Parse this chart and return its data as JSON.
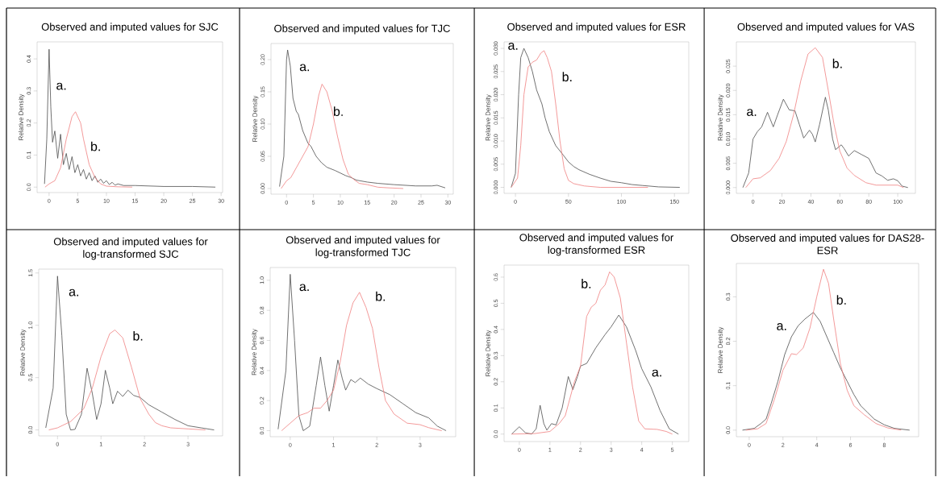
{
  "chart_data": [
    {
      "type": "line",
      "title": "Observed and imputed values for SJC",
      "ylabel": "Relative Density",
      "xlim": [
        -2.09,
        30.26
      ],
      "ylim": [
        -0.017,
        0.453
      ],
      "xticks": [
        0,
        5,
        10,
        15,
        20,
        25,
        30
      ],
      "yticks": [
        {
          "value": 0,
          "label": "0.0"
        },
        {
          "value": 0.1,
          "label": "0.1"
        },
        {
          "value": 0.2,
          "label": "0.2"
        },
        {
          "value": 0.3,
          "label": "0.3"
        },
        {
          "value": 0.4,
          "label": "0.4"
        }
      ],
      "series": [
        {
          "color": "#4d4d4d",
          "x": [
            -0.8,
            -0.4,
            0,
            0.3,
            0.6,
            1,
            1.5,
            2,
            2.5,
            3,
            3.5,
            4,
            4.5,
            5,
            5.5,
            6,
            6.5,
            7,
            7.5,
            8,
            8.5,
            9,
            9.5,
            10,
            10.5,
            11,
            11.5,
            12,
            13,
            15,
            20,
            25,
            29
          ],
          "values": [
            0.01,
            0.15,
            0.43,
            0.25,
            0.14,
            0.175,
            0.09,
            0.165,
            0.07,
            0.105,
            0.055,
            0.095,
            0.045,
            0.07,
            0.035,
            0.055,
            0.025,
            0.045,
            0.02,
            0.035,
            0.015,
            0.025,
            0.012,
            0.02,
            0.008,
            0.015,
            0.006,
            0.01,
            0.005,
            0.005,
            0.002,
            0.002,
            0.0
          ]
        },
        {
          "color": "#f08080",
          "x": [
            -0.7,
            0,
            1,
            2,
            3,
            4,
            4.6,
            5.5,
            6,
            7,
            8,
            9,
            10,
            12,
            14.5
          ],
          "values": [
            0.0,
            0.01,
            0.02,
            0.06,
            0.15,
            0.22,
            0.235,
            0.2,
            0.15,
            0.07,
            0.03,
            0.01,
            0.003,
            0.001,
            0.0
          ]
        }
      ],
      "annotations": [
        "a.",
        "b."
      ]
    },
    {
      "type": "line",
      "title": "Observed and imputed values for TJC",
      "ylabel": "Relative Density",
      "xlim": [
        -2.89,
        31.0
      ],
      "ylim": [
        -0.0088,
        0.225
      ],
      "xticks": [
        0,
        5,
        10,
        15,
        20,
        25,
        30
      ],
      "yticks": [
        {
          "value": 0,
          "label": "0.00"
        },
        {
          "value": 0.05,
          "label": "0.05"
        },
        {
          "value": 0.1,
          "label": "0.10"
        },
        {
          "value": 0.15,
          "label": "0.15"
        },
        {
          "value": 0.2,
          "label": "0.20"
        }
      ],
      "series": [
        {
          "color": "#4d4d4d",
          "x": [
            -1.3,
            -0.5,
            0,
            0.2,
            0.7,
            1.2,
            1.8,
            2.2,
            3,
            4,
            4.5,
            5.5,
            6.5,
            7.5,
            9,
            10,
            11,
            12,
            13,
            15,
            17,
            20,
            24,
            27,
            28,
            29.5
          ],
          "values": [
            0.003,
            0.05,
            0.2,
            0.215,
            0.19,
            0.14,
            0.12,
            0.115,
            0.09,
            0.07,
            0.066,
            0.05,
            0.04,
            0.033,
            0.028,
            0.024,
            0.02,
            0.017,
            0.013,
            0.01,
            0.008,
            0.006,
            0.004,
            0.004,
            0.005,
            0.001
          ]
        },
        {
          "color": "#f08080",
          "x": [
            -1,
            0,
            0.8,
            2,
            3,
            4,
            5,
            6,
            6.6,
            7.5,
            8.5,
            9.5,
            10.5,
            11.5,
            12.5,
            13.5,
            15,
            17,
            19,
            21.7
          ],
          "values": [
            0.0,
            0.012,
            0.017,
            0.035,
            0.05,
            0.065,
            0.1,
            0.145,
            0.162,
            0.15,
            0.12,
            0.08,
            0.045,
            0.022,
            0.014,
            0.008,
            0.006,
            0.002,
            0.001,
            0.0
          ]
        }
      ],
      "annotations": [
        "a.",
        "b."
      ]
    },
    {
      "type": "line",
      "title": "Observed and imputed values for ESR",
      "ylabel": "Relative Density",
      "xlim": [
        -10.7,
        163.5
      ],
      "ylim": [
        -0.0013,
        0.0314
      ],
      "xticks": [
        0,
        50,
        100,
        150
      ],
      "yticks": [
        {
          "value": 0,
          "label": "0.000"
        },
        {
          "value": 0.005,
          "label": "0.005"
        },
        {
          "value": 0.01,
          "label": "0.010"
        },
        {
          "value": 0.015,
          "label": "0.015"
        },
        {
          "value": 0.02,
          "label": "0.020"
        },
        {
          "value": 0.025,
          "label": "0.025"
        },
        {
          "value": 0.03,
          "label": "0.030"
        }
      ],
      "series": [
        {
          "color": "#4d4d4d",
          "x": [
            -4,
            0,
            3,
            5,
            8,
            12,
            16,
            20,
            25,
            28,
            32,
            38,
            45,
            50,
            55,
            60,
            70,
            80,
            90,
            100,
            110,
            120,
            135,
            155
          ],
          "values": [
            0.0,
            0.003,
            0.02,
            0.028,
            0.03,
            0.028,
            0.025,
            0.021,
            0.018,
            0.015,
            0.012,
            0.009,
            0.007,
            0.0055,
            0.0045,
            0.0038,
            0.0028,
            0.002,
            0.0013,
            0.001,
            0.0006,
            0.0004,
            0.0001,
            0.0
          ]
        },
        {
          "color": "#f08080",
          "x": [
            -4,
            2,
            5,
            8,
            12,
            16,
            20,
            24,
            27,
            30,
            34,
            38,
            42,
            46,
            50,
            55,
            65,
            80,
            125
          ],
          "values": [
            0.0,
            0.002,
            0.009,
            0.02,
            0.026,
            0.027,
            0.0275,
            0.029,
            0.0295,
            0.028,
            0.025,
            0.018,
            0.01,
            0.004,
            0.0015,
            0.0008,
            0.0003,
            0.0,
            0.0
          ]
        }
      ],
      "annotations": [
        "a.",
        "b."
      ]
    },
    {
      "type": "line",
      "title": "Observed and imputed values for VAS",
      "ylabel": "Relative Density",
      "xlim": [
        -11.5,
        112.2
      ],
      "ylim": [
        -0.0012,
        0.03
      ],
      "xticks": [
        0,
        20,
        40,
        60,
        80,
        100
      ],
      "yticks": [
        {
          "value": 0,
          "label": "0.000"
        },
        {
          "value": 0.005,
          "label": "0.005"
        },
        {
          "value": 0.01,
          "label": "0.010"
        },
        {
          "value": 0.015,
          "label": "0.015"
        },
        {
          "value": 0.02,
          "label": "0.020"
        },
        {
          "value": 0.025,
          "label": "0.025"
        }
      ],
      "series": [
        {
          "color": "#4d4d4d",
          "x": [
            -7,
            -3,
            0,
            3,
            6,
            10,
            14,
            17,
            21,
            25,
            29,
            32,
            35,
            39,
            41,
            43,
            46,
            50,
            52,
            55,
            57,
            61,
            63,
            66,
            70,
            75,
            80,
            85,
            89,
            93,
            97,
            100,
            103,
            107
          ],
          "values": [
            0.0,
            0.003,
            0.01,
            0.0115,
            0.0125,
            0.0155,
            0.0125,
            0.015,
            0.0182,
            0.016,
            0.0158,
            0.013,
            0.0102,
            0.0118,
            0.011,
            0.0094,
            0.013,
            0.0186,
            0.016,
            0.01,
            0.0078,
            0.0088,
            0.008,
            0.0065,
            0.0076,
            0.0068,
            0.006,
            0.003,
            0.0024,
            0.0015,
            0.0018,
            0.0014,
            0.0003,
            0.0
          ]
        },
        {
          "color": "#f08080",
          "x": [
            -5,
            0,
            5,
            12,
            18,
            23,
            28,
            33,
            38,
            43,
            48,
            52,
            56,
            60,
            65,
            70,
            78,
            85,
            95,
            100,
            104
          ],
          "values": [
            0.0,
            0.0018,
            0.002,
            0.0035,
            0.006,
            0.0095,
            0.015,
            0.022,
            0.0275,
            0.0288,
            0.0268,
            0.02,
            0.013,
            0.0075,
            0.004,
            0.0025,
            0.001,
            0.0005,
            0.0005,
            0.0005,
            0.0
          ]
        }
      ],
      "annotations": [
        "a.",
        "b."
      ]
    },
    {
      "type": "line",
      "title": "Observed and imputed values for log-transformed SJC",
      "ylabel": "Relative Density",
      "xlim": [
        -0.432,
        3.795
      ],
      "ylim": [
        -0.057,
        1.537
      ],
      "xticks": [
        0,
        1,
        2,
        3
      ],
      "yticks": [
        {
          "value": 0,
          "label": "0.0"
        },
        {
          "value": 0.5,
          "label": "0.5"
        },
        {
          "value": 1,
          "label": "1.0"
        },
        {
          "value": 1.5,
          "label": "1.5"
        }
      ],
      "series": [
        {
          "color": "#4d4d4d",
          "x": [
            -0.27,
            -0.1,
            0,
            0.1,
            0.2,
            0.3,
            0.4,
            0.55,
            0.68,
            0.8,
            0.9,
            1.0,
            1.1,
            1.2,
            1.27,
            1.38,
            1.5,
            1.62,
            1.75,
            1.9,
            2.1,
            2.4,
            2.7,
            3.0,
            3.3,
            3.6
          ],
          "values": [
            0.02,
            0.4,
            1.47,
            0.9,
            0.15,
            0.0,
            0.005,
            0.15,
            0.59,
            0.35,
            0.1,
            0.25,
            0.57,
            0.4,
            0.25,
            0.37,
            0.32,
            0.38,
            0.33,
            0.31,
            0.24,
            0.17,
            0.1,
            0.04,
            0.02,
            0.0
          ]
        },
        {
          "color": "#f08080",
          "x": [
            -0.2,
            0,
            0.3,
            0.6,
            0.8,
            1.0,
            1.2,
            1.32,
            1.5,
            1.7,
            1.9,
            2.1,
            2.25,
            2.4,
            2.6,
            3.0,
            3.4
          ],
          "values": [
            0.0,
            0.02,
            0.08,
            0.2,
            0.4,
            0.7,
            0.92,
            0.955,
            0.88,
            0.6,
            0.3,
            0.15,
            0.07,
            0.04,
            0.02,
            0.01,
            0.0
          ]
        }
      ],
      "annotations": [
        "a.",
        "b."
      ]
    },
    {
      "type": "line",
      "title": "Observed and imputed values for log-transformed TJC",
      "ylabel": "Relative Density",
      "xlim": [
        -0.463,
        3.822
      ],
      "ylim": [
        -0.04,
        1.085
      ],
      "xticks": [
        0,
        1,
        2,
        3
      ],
      "yticks": [
        {
          "value": 0,
          "label": "0.0"
        },
        {
          "value": 0.2,
          "label": "0.2"
        },
        {
          "value": 0.4,
          "label": "0.4"
        },
        {
          "value": 0.6,
          "label": "0.6"
        },
        {
          "value": 0.8,
          "label": "0.8"
        },
        {
          "value": 1,
          "label": "1.0"
        }
      ],
      "series": [
        {
          "color": "#4d4d4d",
          "x": [
            -0.28,
            -0.1,
            0,
            0.1,
            0.2,
            0.3,
            0.45,
            0.6,
            0.7,
            0.8,
            0.9,
            1.0,
            1.1,
            1.2,
            1.28,
            1.4,
            1.5,
            1.62,
            1.8,
            2.0,
            2.3,
            2.6,
            2.9,
            3.2,
            3.4,
            3.6
          ],
          "values": [
            0.01,
            0.4,
            1.04,
            0.6,
            0.1,
            0.0,
            0.03,
            0.3,
            0.49,
            0.3,
            0.13,
            0.3,
            0.47,
            0.35,
            0.27,
            0.34,
            0.32,
            0.35,
            0.31,
            0.28,
            0.24,
            0.18,
            0.12,
            0.085,
            0.03,
            0.0
          ]
        },
        {
          "color": "#f08080",
          "x": [
            -0.2,
            0,
            0.2,
            0.4,
            0.55,
            0.7,
            0.85,
            1.0,
            1.15,
            1.3,
            1.45,
            1.6,
            1.75,
            1.9,
            2.05,
            2.2,
            2.4,
            2.7,
            3.0,
            3.2,
            3.5
          ],
          "values": [
            0.0,
            0.05,
            0.1,
            0.12,
            0.15,
            0.15,
            0.2,
            0.27,
            0.45,
            0.7,
            0.85,
            0.92,
            0.82,
            0.68,
            0.42,
            0.2,
            0.11,
            0.05,
            0.04,
            0.02,
            0.0
          ]
        }
      ],
      "annotations": [
        "a.",
        "b."
      ]
    },
    {
      "type": "line",
      "title": "Observed and imputed values for log-transformed ESR",
      "ylabel": "Relative Density",
      "xlim": [
        -0.498,
        5.537
      ],
      "ylim": [
        -0.0285,
        0.646
      ],
      "xticks": [
        0,
        1,
        2,
        3,
        4,
        5
      ],
      "yticks": [
        {
          "value": 0,
          "label": "0.0"
        },
        {
          "value": 0.1,
          "label": "0.1"
        },
        {
          "value": 0.2,
          "label": "0.2"
        },
        {
          "value": 0.3,
          "label": "0.3"
        },
        {
          "value": 0.4,
          "label": "0.4"
        },
        {
          "value": 0.5,
          "label": "0.5"
        },
        {
          "value": 0.6,
          "label": "0.6"
        }
      ],
      "series": [
        {
          "color": "#4d4d4d",
          "x": [
            -0.25,
            0,
            0.2,
            0.4,
            0.55,
            0.68,
            0.8,
            0.9,
            1.05,
            1.2,
            1.4,
            1.6,
            1.75,
            1.9,
            2.0,
            2.2,
            2.5,
            2.8,
            3.0,
            3.25,
            3.5,
            3.8,
            4.0,
            4.3,
            4.6,
            4.9,
            5.2
          ],
          "values": [
            0.0,
            0.028,
            0.005,
            0.0,
            0.02,
            0.11,
            0.04,
            0.015,
            0.04,
            0.035,
            0.1,
            0.22,
            0.17,
            0.22,
            0.26,
            0.27,
            0.33,
            0.38,
            0.41,
            0.455,
            0.41,
            0.32,
            0.25,
            0.18,
            0.09,
            0.02,
            0.0
          ]
        },
        {
          "color": "#f08080",
          "x": [
            -0.25,
            0.5,
            1.0,
            1.3,
            1.5,
            1.8,
            2.0,
            2.2,
            2.35,
            2.5,
            2.65,
            2.8,
            2.95,
            3.1,
            3.3,
            3.5,
            3.7,
            3.9,
            4.1,
            4.5,
            4.8,
            5.0
          ],
          "values": [
            0.0,
            0.002,
            0.01,
            0.04,
            0.07,
            0.2,
            0.26,
            0.45,
            0.485,
            0.5,
            0.55,
            0.57,
            0.62,
            0.6,
            0.52,
            0.35,
            0.18,
            0.05,
            0.02,
            0.018,
            0.01,
            0.0
          ]
        }
      ],
      "annotations": [
        "a.",
        "b."
      ]
    },
    {
      "type": "line",
      "title": "Observed and imputed values for DAS28- ESR",
      "ylabel": "Relative Density",
      "xlim": [
        -0.761,
        10.035
      ],
      "ylim": [
        -0.0148,
        0.375
      ],
      "xticks": [
        0,
        2,
        4,
        6,
        8
      ],
      "yticks": [
        {
          "value": 0,
          "label": "0.0"
        },
        {
          "value": 0.1,
          "label": "0.1"
        },
        {
          "value": 0.2,
          "label": "0.2"
        },
        {
          "value": 0.3,
          "label": "0.3"
        }
      ],
      "series": [
        {
          "color": "#4d4d4d",
          "x": [
            -0.4,
            0.3,
            0.7,
            1.0,
            1.3,
            1.7,
            2.1,
            2.5,
            2.9,
            3.3,
            3.8,
            4.2,
            4.6,
            5.0,
            5.4,
            5.8,
            6.2,
            6.6,
            7.0,
            7.4,
            8.0,
            8.6,
            9.5
          ],
          "values": [
            0.0,
            0.004,
            0.015,
            0.025,
            0.06,
            0.11,
            0.17,
            0.21,
            0.235,
            0.25,
            0.265,
            0.245,
            0.21,
            0.175,
            0.14,
            0.11,
            0.08,
            0.055,
            0.04,
            0.025,
            0.012,
            0.004,
            0.0
          ]
        },
        {
          "color": "#f08080",
          "x": [
            -0.2,
            0.5,
            1.0,
            1.5,
            2.0,
            2.5,
            2.8,
            3.2,
            3.6,
            4.0,
            4.4,
            4.7,
            5.0,
            5.4,
            5.8,
            6.2,
            6.8,
            7.5,
            8.2,
            9.0
          ],
          "values": [
            0.0,
            0.003,
            0.015,
            0.07,
            0.135,
            0.172,
            0.17,
            0.185,
            0.23,
            0.3,
            0.362,
            0.33,
            0.25,
            0.15,
            0.09,
            0.055,
            0.035,
            0.015,
            0.005,
            0.0
          ]
        }
      ],
      "annotations": [
        "a.",
        "b."
      ]
    }
  ]
}
